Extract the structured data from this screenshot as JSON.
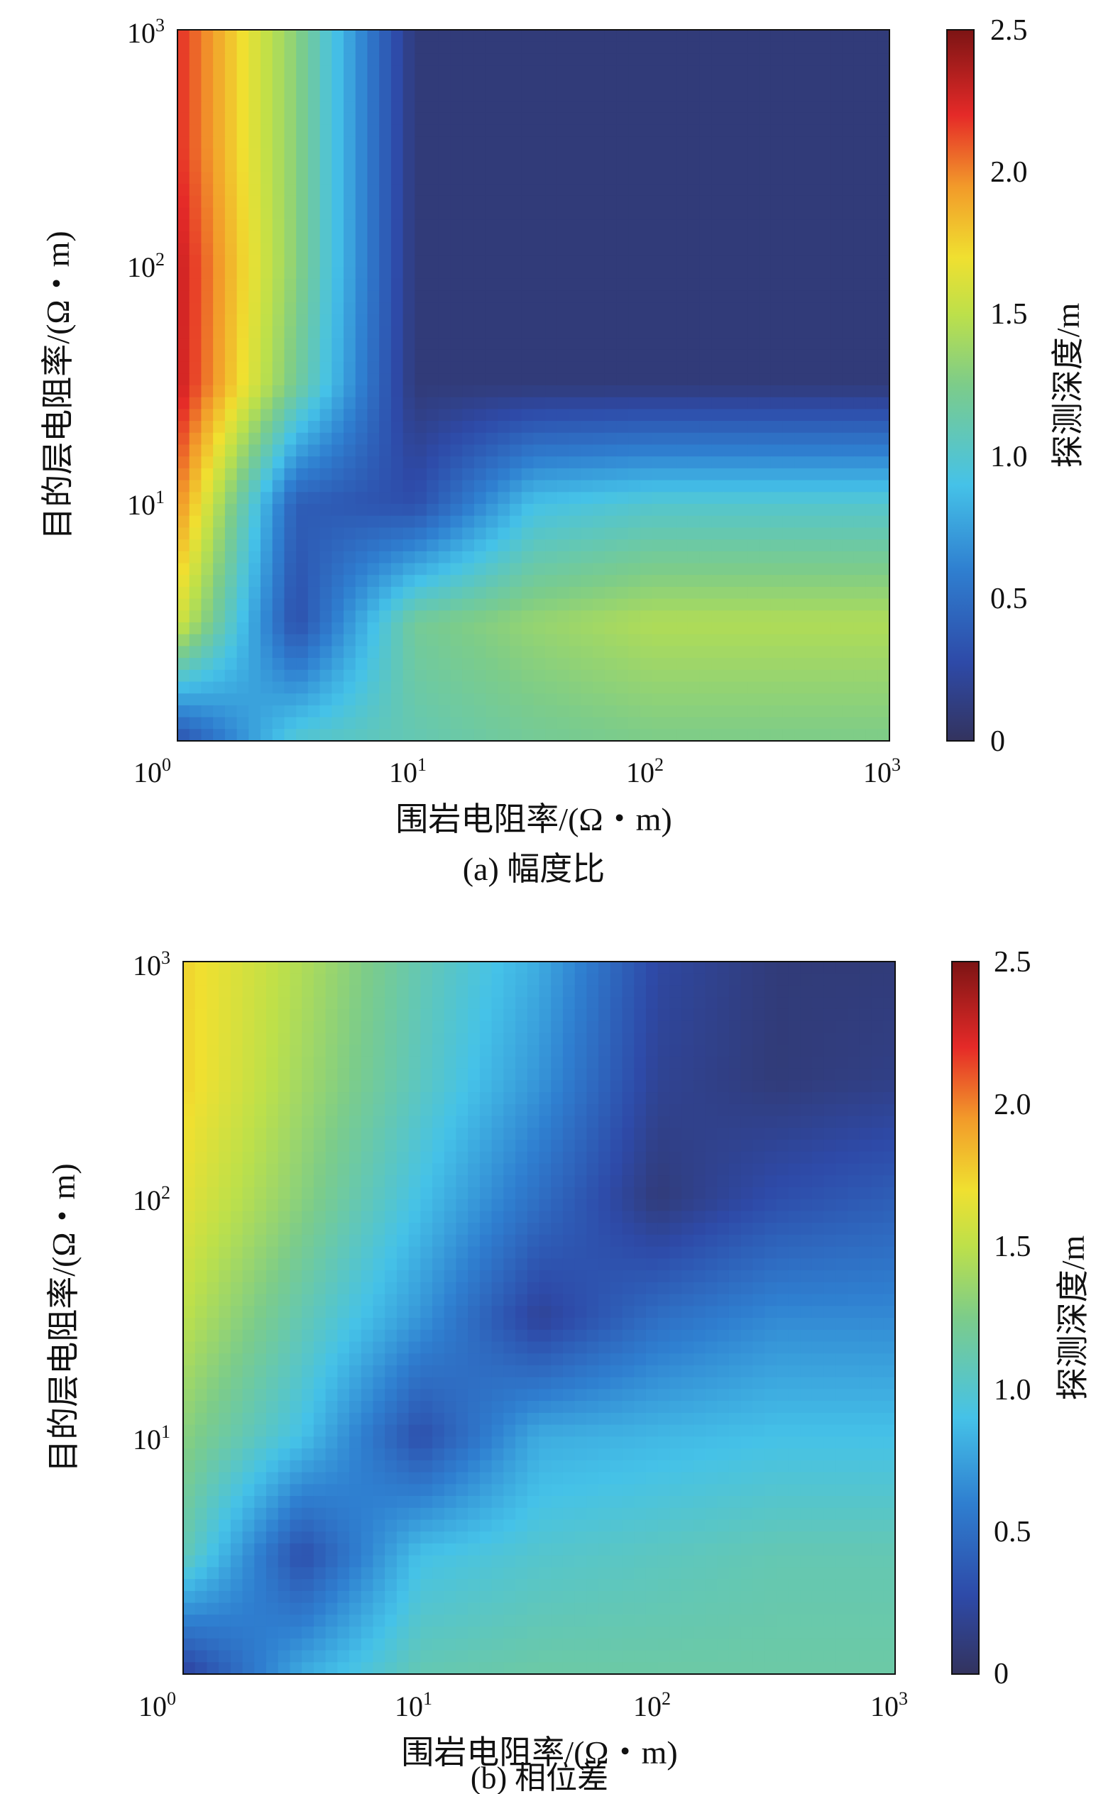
{
  "chart_data": [
    {
      "type": "heatmap",
      "panel_label": "(a) 幅度比",
      "xlabel": "围岩电阻率/(Ω・m)",
      "ylabel": "目的层电阻率/(Ω・m)",
      "colorbar_label": "探测深度/m",
      "x_scale": "log",
      "y_scale": "log",
      "xlim": [
        1,
        1000
      ],
      "ylim": [
        1,
        1000
      ],
      "x_ticks": [
        {
          "base": "10",
          "exp": "0"
        },
        {
          "base": "10",
          "exp": "1"
        },
        {
          "base": "10",
          "exp": "2"
        },
        {
          "base": "10",
          "exp": "3"
        }
      ],
      "y_ticks": [
        {
          "base": "10",
          "exp": "1"
        },
        {
          "base": "10",
          "exp": "2"
        },
        {
          "base": "10",
          "exp": "3"
        }
      ],
      "colorbar_ticks": [
        "0",
        "0.5",
        "1.0",
        "1.5",
        "2.0",
        "2.5"
      ],
      "color_range": [
        0,
        2.5
      ],
      "colormap": "jet",
      "x_grid_log10": [
        0,
        0.5,
        1,
        1.5,
        2,
        2.5,
        3
      ],
      "y_grid_log10": [
        0,
        0.5,
        1,
        1.5,
        2,
        2.5,
        3
      ],
      "z": [
        [
          0.3,
          1.0,
          1.1,
          1.2,
          1.25,
          1.25,
          1.25
        ],
        [
          1.6,
          0.3,
          1.2,
          1.35,
          1.45,
          1.45,
          1.45
        ],
        [
          2.0,
          0.4,
          0.3,
          0.9,
          1.0,
          1.0,
          1.0
        ],
        [
          2.3,
          1.2,
          0.1,
          0.1,
          0.1,
          0.1,
          0.1
        ],
        [
          2.3,
          1.3,
          0.1,
          0.1,
          0.1,
          0.1,
          0.1
        ],
        [
          2.2,
          1.3,
          0.1,
          0.1,
          0.1,
          0.1,
          0.1
        ],
        [
          2.2,
          1.3,
          0.1,
          0.1,
          0.1,
          0.1,
          0.1
        ]
      ]
    },
    {
      "type": "heatmap",
      "panel_label": "(b) 相位差",
      "xlabel": "围岩电阻率/(Ω・m)",
      "ylabel": "目的层电阻率/(Ω・m)",
      "colorbar_label": "探测深度/m",
      "x_scale": "log",
      "y_scale": "log",
      "xlim": [
        1,
        1000
      ],
      "ylim": [
        1,
        1000
      ],
      "x_ticks": [
        {
          "base": "10",
          "exp": "0"
        },
        {
          "base": "10",
          "exp": "1"
        },
        {
          "base": "10",
          "exp": "2"
        },
        {
          "base": "10",
          "exp": "3"
        }
      ],
      "y_ticks": [
        {
          "base": "10",
          "exp": "1"
        },
        {
          "base": "10",
          "exp": "2"
        },
        {
          "base": "10",
          "exp": "3"
        }
      ],
      "colorbar_ticks": [
        "0",
        "0.5",
        "1.0",
        "1.5",
        "2.0",
        "2.5"
      ],
      "color_range": [
        0,
        2.5
      ],
      "colormap": "jet",
      "x_grid_log10": [
        0,
        0.5,
        1,
        1.5,
        2,
        2.5,
        3
      ],
      "y_grid_log10": [
        0,
        0.5,
        1,
        1.5,
        2,
        2.5,
        3
      ],
      "z": [
        [
          0.2,
          0.8,
          1.1,
          1.15,
          1.15,
          1.15,
          1.15
        ],
        [
          1.1,
          0.3,
          0.9,
          1.0,
          1.05,
          1.1,
          1.1
        ],
        [
          1.3,
          0.9,
          0.3,
          0.8,
          0.85,
          0.9,
          0.9
        ],
        [
          1.5,
          1.1,
          0.7,
          0.2,
          0.5,
          0.65,
          0.65
        ],
        [
          1.65,
          1.3,
          0.9,
          0.5,
          0.1,
          0.3,
          0.4
        ],
        [
          1.75,
          1.4,
          1.05,
          0.7,
          0.2,
          0.1,
          0.15
        ],
        [
          1.75,
          1.45,
          1.1,
          0.8,
          0.25,
          0.1,
          0.1
        ]
      ]
    }
  ]
}
